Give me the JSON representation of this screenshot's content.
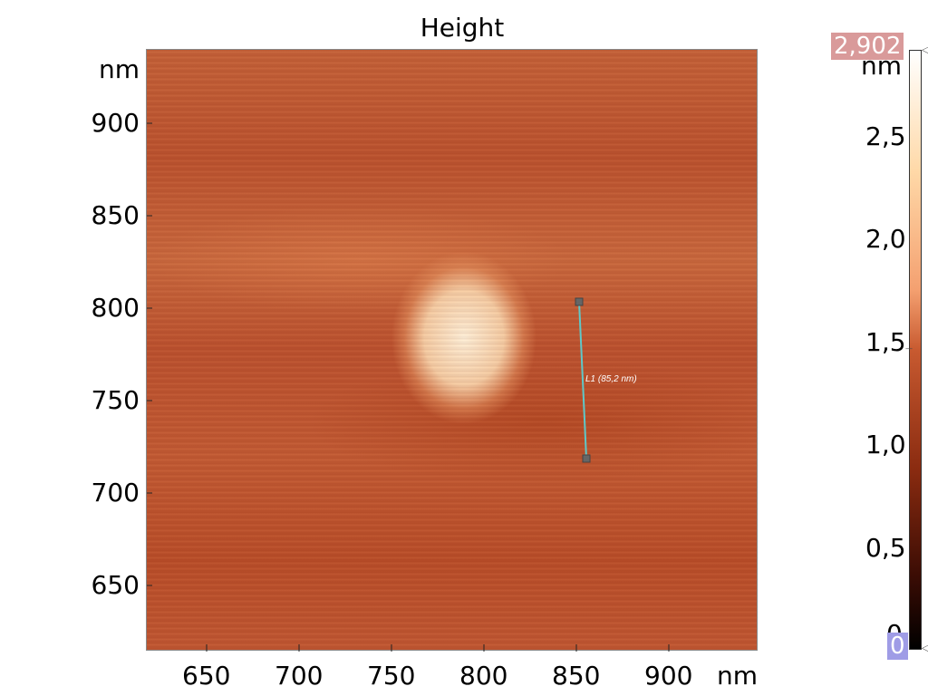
{
  "title": "Height",
  "y_axis": {
    "unit": "nm",
    "ticks": [
      "900",
      "850",
      "800",
      "750",
      "700",
      "650"
    ]
  },
  "x_axis": {
    "unit": "nm",
    "ticks": [
      "650",
      "700",
      "750",
      "800",
      "850",
      "900"
    ]
  },
  "colorbar": {
    "unit": "nm",
    "max_label": "2,902",
    "min_label": "0",
    "ticks": [
      "2,5",
      "2,0",
      "1,5",
      "1,0",
      "0,5",
      "0"
    ]
  },
  "measurement": {
    "label": "L1 (85,2 nm)",
    "color": "#5ec8c8"
  }
}
